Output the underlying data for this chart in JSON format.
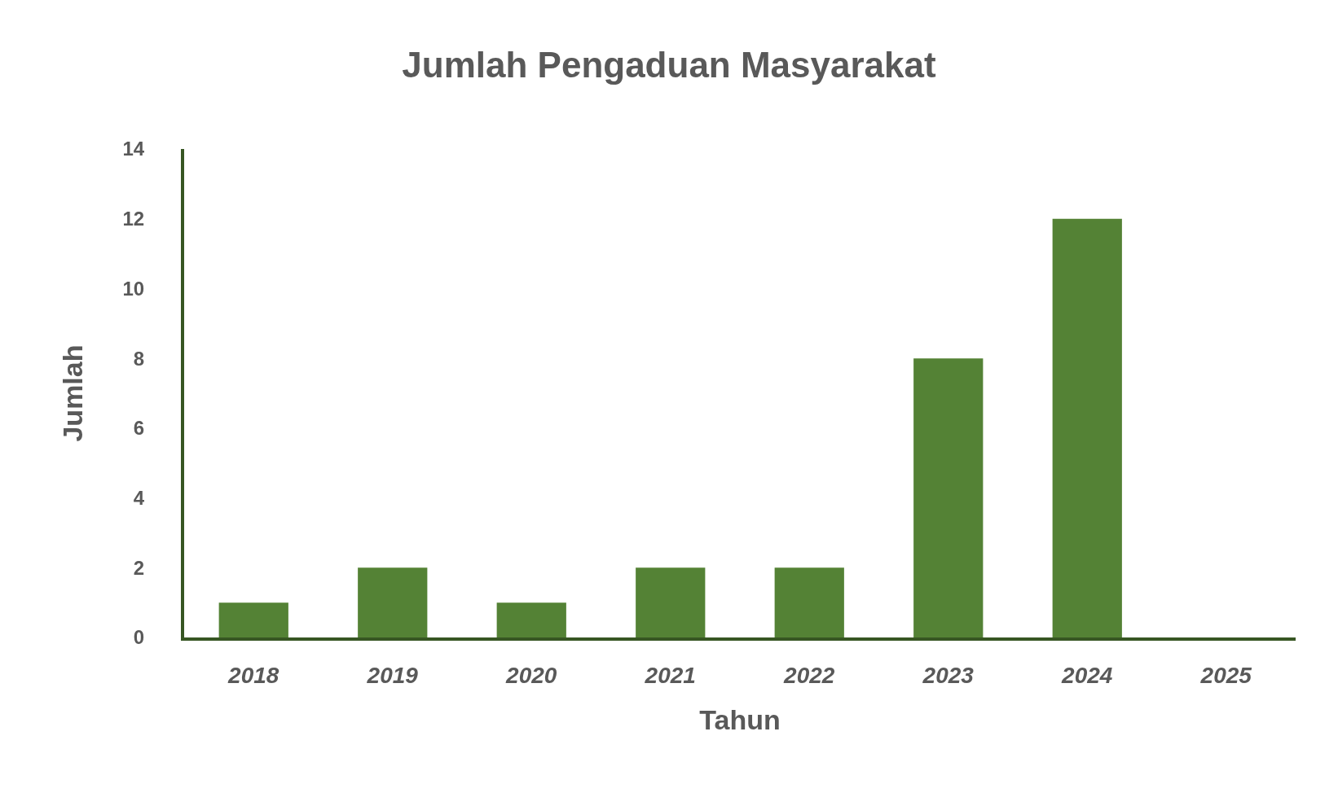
{
  "chart_data": {
    "type": "bar",
    "title": "Jumlah Pengaduan Masyarakat",
    "xlabel": "Tahun",
    "ylabel": "Jumlah",
    "categories": [
      "2018",
      "2019",
      "2020",
      "2021",
      "2022",
      "2023",
      "2024",
      "2025"
    ],
    "values": [
      1,
      2,
      1,
      2,
      2,
      8,
      12,
      0
    ],
    "color": "#548235",
    "ylim": [
      0,
      14
    ],
    "yticks": [
      0,
      2,
      4,
      6,
      8,
      10,
      12,
      14
    ]
  }
}
